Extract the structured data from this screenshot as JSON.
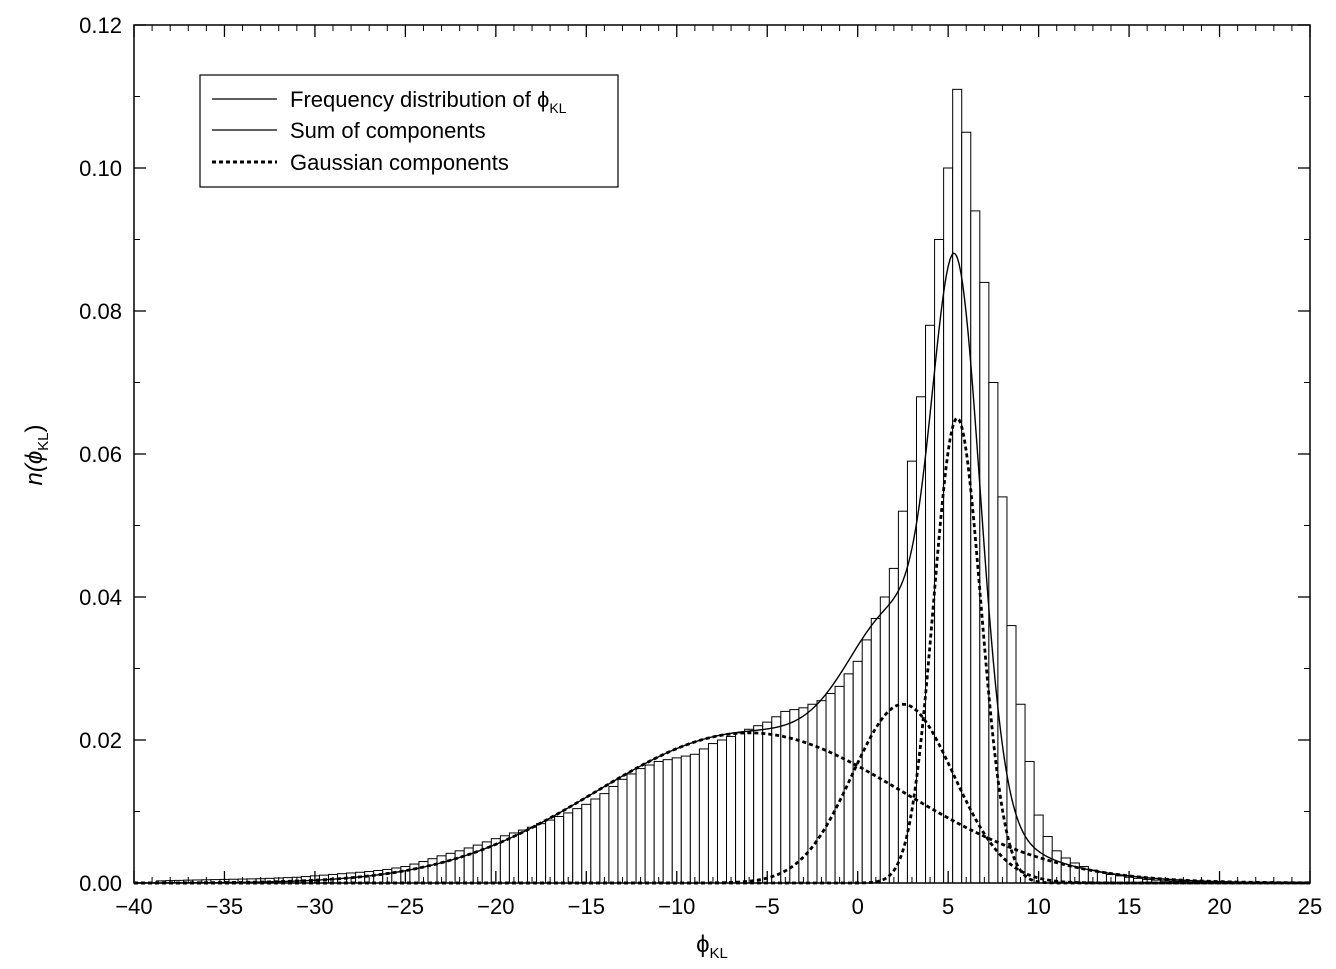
{
  "chart_data": {
    "type": "bar",
    "xlabel": "ϕ",
    "xlabel_sub": "KL",
    "ylabel_prefix": "n(ϕ",
    "ylabel_sub": "KL",
    "ylabel_suffix": ")",
    "xlim": [
      -40,
      25
    ],
    "ylim": [
      0,
      0.12
    ],
    "x_ticks": [
      -40,
      -35,
      -30,
      -25,
      -20,
      -15,
      -10,
      -5,
      0,
      5,
      10,
      15,
      20,
      25
    ],
    "x_tick_labels": [
      "−40",
      "−35",
      "−30",
      "−25",
      "−20",
      "−15",
      "−10",
      "−5",
      "0",
      "5",
      "10",
      "15",
      "20",
      "25"
    ],
    "y_ticks": [
      0,
      0.02,
      0.04,
      0.06,
      0.08,
      0.1,
      0.12
    ],
    "y_tick_labels": [
      "0.00",
      "0.02",
      "0.04",
      "0.06",
      "0.08",
      "0.10",
      "0.12"
    ],
    "legend": {
      "placement": "top-left",
      "items": [
        {
          "prefix": "Frequency distribution of ϕ",
          "sub": "KL",
          "style": "solid"
        },
        {
          "prefix": "Sum of components",
          "sub": "",
          "style": "solid"
        },
        {
          "prefix": "Gaussian components",
          "sub": "",
          "style": "dashed"
        }
      ]
    },
    "histogram": {
      "bin_width": 0.5,
      "bins": [
        [
          -38.5,
          0.0003
        ],
        [
          -37.0,
          0.0004
        ],
        [
          -35.0,
          0.0005
        ],
        [
          -33.0,
          0.0006
        ],
        [
          -31.0,
          0.0008
        ],
        [
          -30.0,
          0.001
        ],
        [
          -29.0,
          0.0012
        ],
        [
          -28.0,
          0.0014
        ],
        [
          -27.0,
          0.0016
        ],
        [
          -26.0,
          0.0019
        ],
        [
          -25.0,
          0.0023
        ],
        [
          -24.0,
          0.003
        ],
        [
          -23.0,
          0.0038
        ],
        [
          -22.0,
          0.0045
        ],
        [
          -21.0,
          0.0053
        ],
        [
          -20.0,
          0.0062
        ],
        [
          -19.0,
          0.007
        ],
        [
          -18.0,
          0.0078
        ],
        [
          -17.0,
          0.0088
        ],
        [
          -16.0,
          0.0098
        ],
        [
          -15.0,
          0.011
        ],
        [
          -14.0,
          0.0125
        ],
        [
          -13.0,
          0.0145
        ],
        [
          -12.0,
          0.016
        ],
        [
          -11.0,
          0.017
        ],
        [
          -10.0,
          0.0175
        ],
        [
          -9.0,
          0.018
        ],
        [
          -8.0,
          0.0195
        ],
        [
          -7.0,
          0.0205
        ],
        [
          -6.0,
          0.0215
        ],
        [
          -5.0,
          0.0225
        ],
        [
          -4.0,
          0.024
        ],
        [
          -3.0,
          0.0245
        ],
        [
          -2.0,
          0.0255
        ],
        [
          -1.0,
          0.0275
        ],
        [
          0.0,
          0.031
        ],
        [
          0.5,
          0.034
        ],
        [
          1.0,
          0.037
        ],
        [
          1.5,
          0.04
        ],
        [
          2.0,
          0.044
        ],
        [
          2.5,
          0.052
        ],
        [
          3.0,
          0.059
        ],
        [
          3.5,
          0.068
        ],
        [
          4.0,
          0.078
        ],
        [
          4.5,
          0.09
        ],
        [
          5.0,
          0.1
        ],
        [
          5.5,
          0.111
        ],
        [
          6.0,
          0.105
        ],
        [
          6.5,
          0.094
        ],
        [
          7.0,
          0.084
        ],
        [
          7.5,
          0.07
        ],
        [
          8.0,
          0.054
        ],
        [
          8.5,
          0.036
        ],
        [
          9.0,
          0.025
        ],
        [
          9.5,
          0.017
        ],
        [
          10.0,
          0.0095
        ],
        [
          10.5,
          0.0065
        ],
        [
          11.0,
          0.0045
        ],
        [
          11.5,
          0.0035
        ],
        [
          12.0,
          0.0028
        ],
        [
          12.5,
          0.0023
        ],
        [
          13.0,
          0.0018
        ],
        [
          14.0,
          0.0012
        ],
        [
          15.0,
          0.0008
        ],
        [
          16.0,
          0.0005
        ],
        [
          17.0,
          0.0003
        ],
        [
          18.0,
          0.0002
        ],
        [
          19.0,
          0.0001
        ]
      ]
    },
    "gaussian_components": [
      {
        "amplitude": 0.021,
        "mean": -6.0,
        "sigma": 8.5
      },
      {
        "amplitude": 0.025,
        "mean": 2.5,
        "sigma": 2.8
      },
      {
        "amplitude": 0.065,
        "mean": 5.5,
        "sigma": 1.3
      }
    ]
  }
}
